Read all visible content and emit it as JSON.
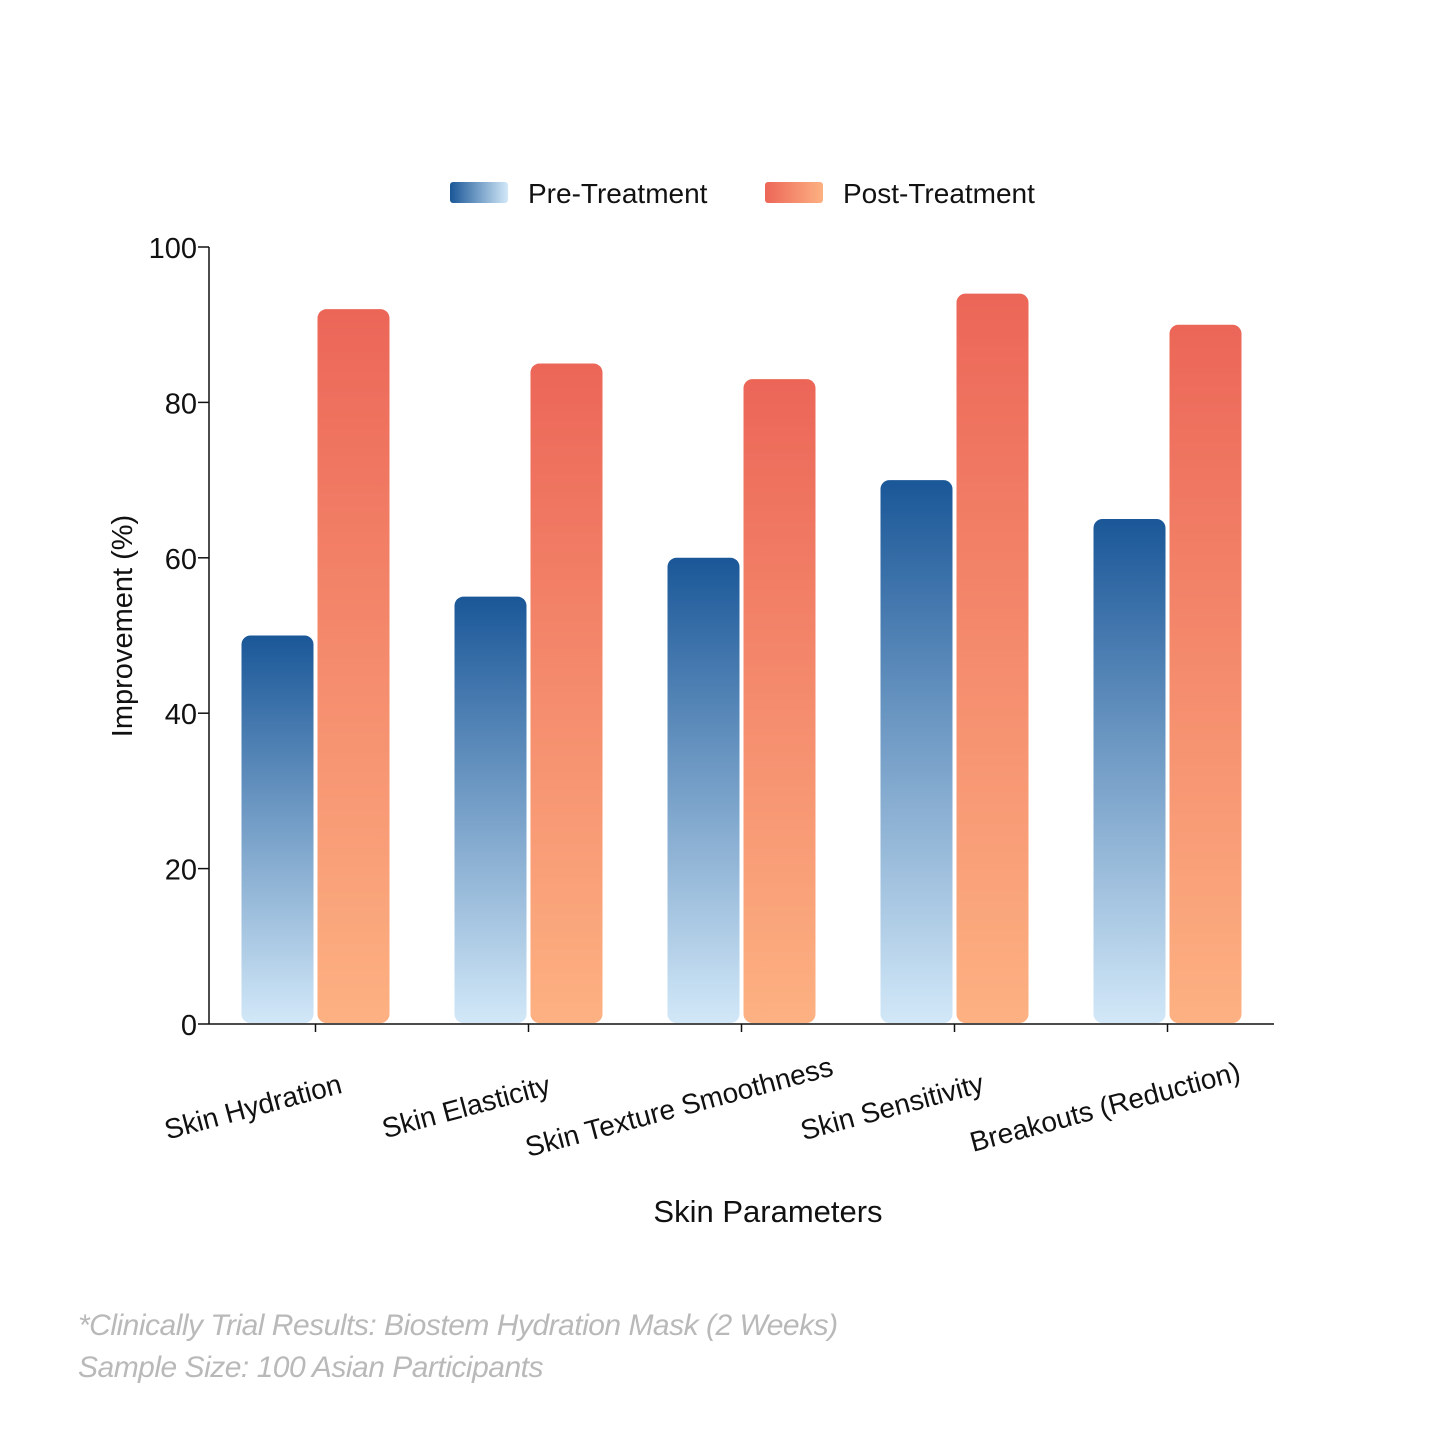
{
  "chart_data": {
    "type": "bar",
    "categories": [
      "Skin Hydration",
      "Skin Elasticity",
      "Skin Texture Smoothness",
      "Skin Sensitivity",
      "Breakouts (Reduction)"
    ],
    "series": [
      {
        "name": "Pre-Treatment",
        "values": [
          50,
          55,
          60,
          70,
          65
        ],
        "color_top": "#1a5798",
        "color_bottom": "#d2e8f8"
      },
      {
        "name": "Post-Treatment",
        "values": [
          92,
          85,
          83,
          94,
          90
        ],
        "color_top": "#ec6658",
        "color_bottom": "#fdb182"
      }
    ],
    "xlabel": "Skin Parameters",
    "ylabel": "Improvement (%)",
    "ylim": [
      0,
      100
    ],
    "yticks": [
      0,
      20,
      40,
      60,
      80,
      100
    ],
    "legend_position": "top-center",
    "grid": false
  },
  "footnote": {
    "line1": "*Clinically Trial Results: Biostem Hydration Mask (2 Weeks)",
    "line2": "Sample Size: 100 Asian Participants"
  }
}
